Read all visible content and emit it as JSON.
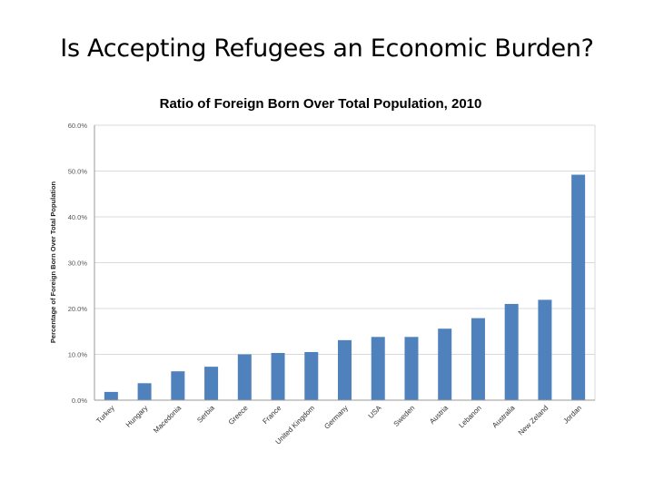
{
  "slide": {
    "title": "Is Accepting Refugees an Economic Burden?"
  },
  "chart_data": {
    "type": "bar",
    "title": "Ratio of Foreign Born Over Total Population, 2010",
    "xlabel": "",
    "ylabel": "Percentage of Foreign Born Over Total Population",
    "ylim": [
      0,
      60
    ],
    "yticks": [
      0,
      10,
      20,
      30,
      40,
      50,
      60
    ],
    "ytick_labels": [
      "0.0%",
      "10.0%",
      "20.0%",
      "30.0%",
      "40.0%",
      "50.0%",
      "60.0%"
    ],
    "grid": true,
    "bar_color": "#4f81bd",
    "grid_color": "#d9d9d9",
    "categories": [
      "Turkey",
      "Hungary",
      "Macedonia",
      "Serbia",
      "Greece",
      "France",
      "United Kingdom",
      "Germany",
      "USA",
      "Sweden",
      "Austria",
      "Lebanon",
      "Australia",
      "New Zeland",
      "Jordan"
    ],
    "values": [
      1.8,
      3.7,
      6.3,
      7.3,
      10.0,
      10.3,
      10.5,
      13.1,
      13.8,
      13.8,
      15.6,
      17.9,
      21.0,
      21.9,
      49.2
    ]
  }
}
